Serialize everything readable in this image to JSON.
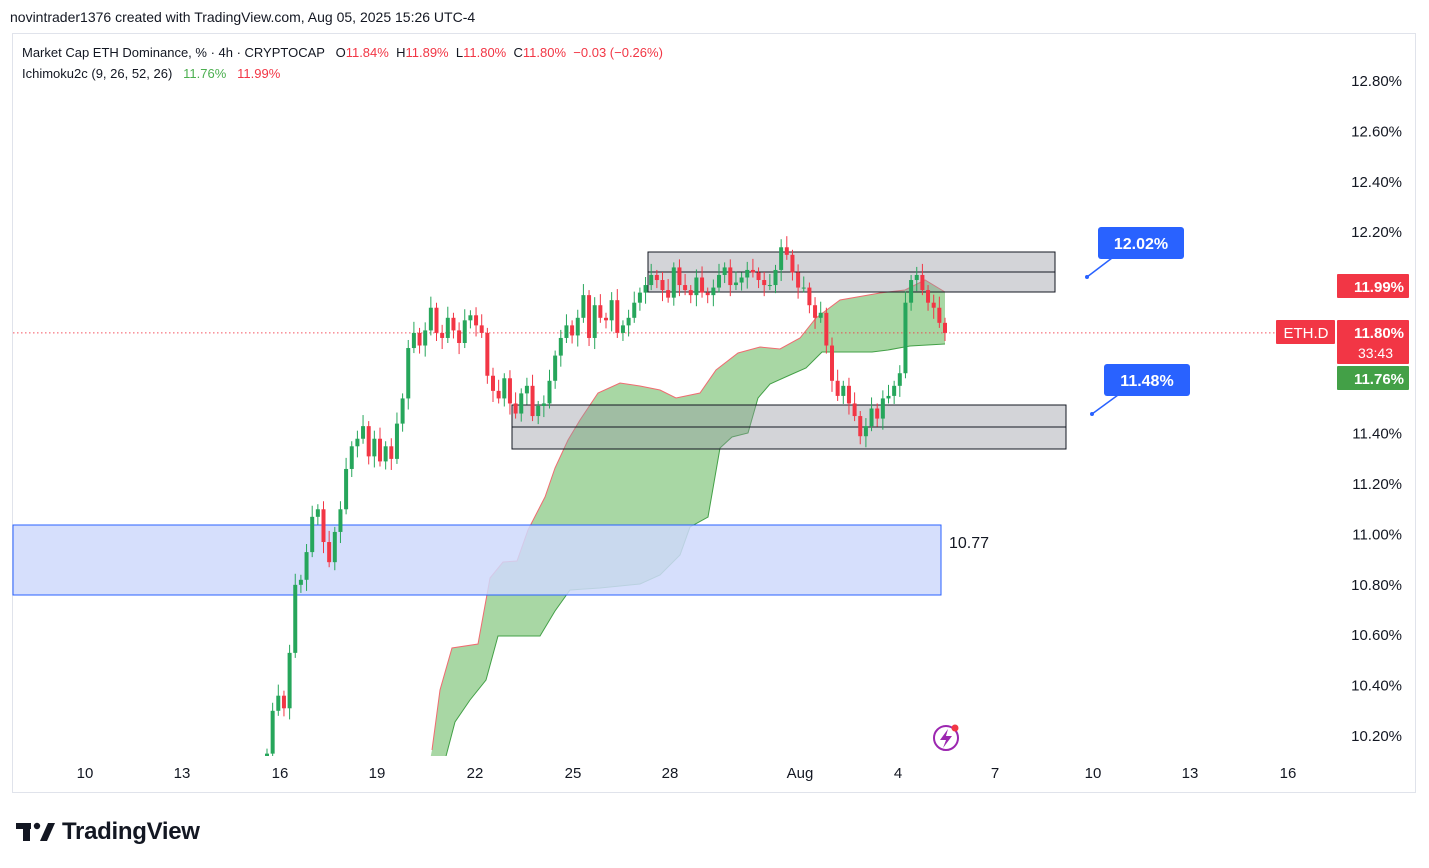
{
  "header": {
    "attribution": "novintrader1376 created with TradingView.com, Aug 05, 2025 15:26 UTC-4"
  },
  "legend": {
    "symbol": "Market Cap ETH Dominance, % · 4h · CRYPTOCAP",
    "o_label": "O",
    "o": "11.84%",
    "h_label": "H",
    "h": "11.89%",
    "l_label": "L",
    "l": "11.80%",
    "c_label": "C",
    "c": "11.80%",
    "change": "−0.03 (−0.26%)",
    "indicator": "Ichimoku2c (9, 26, 52, 26)",
    "ind_v1": "11.76%",
    "ind_v2": "11.99%"
  },
  "footer": {
    "brand": "TradingView"
  },
  "colors": {
    "up": "#26a65b",
    "down": "#f23645",
    "cloud": "#8fcc8a",
    "accent": "#2962ff",
    "zone": "#cfd9fb"
  },
  "chart_data": {
    "type": "candlestick",
    "symbol": "ETH.D",
    "interval": "4h",
    "y_range": [
      10.12,
      12.94
    ],
    "x_ticks": [
      "10",
      "13",
      "16",
      "19",
      "22",
      "25",
      "28",
      "Aug",
      "4",
      "7",
      "10",
      "13",
      "16"
    ],
    "y_ticks": [
      "12.80%",
      "12.60%",
      "12.40%",
      "12.20%",
      "12.00%",
      "11.80%",
      "11.60%",
      "11.40%",
      "11.20%",
      "11.00%",
      "10.80%",
      "10.60%",
      "10.40%",
      "10.20%"
    ],
    "last_price": "11.80%",
    "last_symbol": "ETH.D",
    "countdown": "33:43",
    "ichimoku_span_b": "11.99%",
    "ichimoku_span_a": "11.76%",
    "callouts": [
      "12.02%",
      "11.48%"
    ],
    "zone_label": "10.77",
    "candles_close": [
      10.13,
      10.3,
      10.36,
      10.31,
      10.53,
      10.8,
      10.82,
      10.93,
      11.07,
      11.1,
      10.97,
      10.89,
      11.01,
      11.1,
      11.26,
      11.35,
      11.38,
      11.43,
      11.31,
      11.38,
      11.29,
      11.35,
      11.3,
      11.44,
      11.54,
      11.74,
      11.8,
      11.75,
      11.81,
      11.9,
      11.8,
      11.78,
      11.86,
      11.81,
      11.76,
      11.85,
      11.87,
      11.83,
      11.8,
      11.63,
      11.57,
      11.54,
      11.62,
      11.52,
      11.48,
      11.56,
      11.59,
      11.47,
      11.51,
      11.52,
      11.61,
      11.71,
      11.78,
      11.83,
      11.79,
      11.86,
      11.95,
      11.78,
      11.91,
      11.86,
      11.85,
      11.93,
      11.8,
      11.83,
      11.86,
      11.92,
      11.96,
      11.99,
      12.03,
      12.01,
      11.97,
      11.94,
      12.06,
      11.99,
      11.97,
      11.95,
      12.02,
      11.96,
      11.95,
      11.98,
      12.03,
      12.06,
      11.99,
      12.0,
      12.02,
      12.05,
      12.04,
      12.01,
      11.99,
      11.99,
      12.05,
      12.14,
      12.11,
      12.04,
      11.98,
      11.98,
      11.91,
      11.86,
      11.88,
      11.75,
      11.61,
      11.55,
      11.59,
      11.52,
      11.47,
      11.39,
      11.43,
      11.5,
      11.46,
      11.54,
      11.55,
      11.59,
      11.64,
      11.92,
      12.01,
      12.03,
      11.97,
      11.92,
      11.9,
      11.84,
      11.8
    ]
  }
}
